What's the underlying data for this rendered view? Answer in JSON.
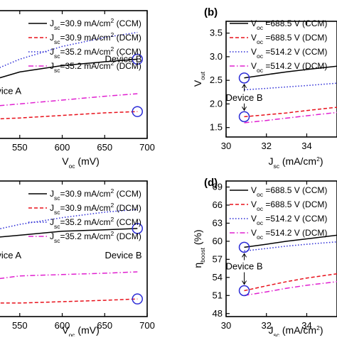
{
  "chart_data": [
    {
      "id": "a",
      "type": "line",
      "panel_label": "",
      "xlabel_main": "V",
      "xlabel_sub": "oc",
      "xlabel_unit": " (mV)",
      "ylabel_main": "",
      "ylabel_sub": "",
      "ylabel_unit": "",
      "xlim": [
        510,
        700
      ],
      "ylim": [
        0,
        1
      ],
      "xticks": [
        550,
        600,
        650,
        700
      ],
      "yticks": [],
      "legend": [
        {
          "main": "J",
          "sub": "sc",
          "text": "=30.9 mA/cm",
          "sup": "2",
          "mode": " (CCM)",
          "color": "#000000",
          "dash": "none"
        },
        {
          "main": "J",
          "sub": "sc",
          "text": "=30.9 mA/cm",
          "sup": "2",
          "mode": " (DCM)",
          "color": "#e8101a",
          "dash": "5,3"
        },
        {
          "main": "J",
          "sub": "sc",
          "text": "=35.2 mA/cm",
          "sup": "2",
          "mode": " (CCM)",
          "color": "#2b2bd6",
          "dash": "1.5,2.5"
        },
        {
          "main": "J",
          "sub": "sc",
          "text": "=35.2 mA/cm",
          "sup": "2",
          "mode": " (DCM)",
          "color": "#e020d0",
          "dash": "7,3,1.5,3"
        }
      ],
      "series": [
        {
          "x": [
            514,
            550,
            600,
            650,
            688.5
          ],
          "y": [
            0.45,
            0.52,
            0.57,
            0.6,
            0.62
          ]
        },
        {
          "x": [
            514,
            550,
            600,
            650,
            688.5
          ],
          "y": [
            0.15,
            0.16,
            0.18,
            0.2,
            0.21
          ]
        },
        {
          "x": [
            514,
            550,
            600,
            650,
            688.5
          ],
          "y": [
            0.52,
            0.62,
            0.72,
            0.79,
            0.83
          ]
        },
        {
          "x": [
            514,
            550,
            600,
            650,
            688.5
          ],
          "y": [
            0.25,
            0.27,
            0.3,
            0.33,
            0.35
          ]
        }
      ],
      "markers": [
        {
          "x": 514,
          "y": 0.52,
          "color": "#e8101a"
        },
        {
          "x": 514,
          "y": 0.21,
          "color": "#e8101a"
        },
        {
          "x": 688.5,
          "y": 0.62,
          "color": "#2b2bd6"
        },
        {
          "x": 688.5,
          "y": 0.21,
          "color": "#2b2bd6"
        }
      ],
      "annotations": [
        {
          "text": "Device A",
          "x": 514,
          "y": 0.37,
          "anchor": "start"
        },
        {
          "text": "Device B",
          "x": 672,
          "y": 0.62,
          "anchor": "middle"
        }
      ]
    },
    {
      "id": "b",
      "type": "line",
      "panel_label": "(b)",
      "xlabel_main": "J",
      "xlabel_sub": "sc",
      "xlabel_unit": " (mA/cm",
      "xlabel_sup": "2",
      "xlabel_close": ")",
      "ylabel_main": "V",
      "ylabel_sub": "out",
      "ylabel_unit": "",
      "xlim": [
        30,
        35.5
      ],
      "ylim": [
        1.3,
        3.75
      ],
      "xticks": [
        30,
        32,
        34
      ],
      "yticks": [
        1.5,
        2.0,
        2.5,
        3.0,
        3.5
      ],
      "ytick_labels": [
        "1.5",
        "2.0",
        "2.5",
        "3.0",
        "3.5"
      ],
      "legend": [
        {
          "main": "V",
          "sub": "oc",
          "text": " =688.5 V (CCM)",
          "sup": "",
          "mode": "",
          "color": "#000000",
          "dash": "none"
        },
        {
          "main": "V",
          "sub": "oc",
          "text": " =688.5 V (DCM)",
          "sup": "",
          "mode": "",
          "color": "#e8101a",
          "dash": "5,3"
        },
        {
          "main": "V",
          "sub": "oc",
          "text": " =514.2 V (CCM)",
          "sup": "",
          "mode": "",
          "color": "#2b2bd6",
          "dash": "1.5,2.5"
        },
        {
          "main": "V",
          "sub": "oc",
          "text": " =514.2 V (DCM)",
          "sup": "",
          "mode": "",
          "color": "#e020d0",
          "dash": "7,3,1.5,3"
        }
      ],
      "series": [
        {
          "x": [
            30.9,
            32,
            33,
            34,
            35.5
          ],
          "y": [
            2.55,
            2.62,
            2.68,
            2.73,
            2.8
          ]
        },
        {
          "x": [
            30.9,
            32,
            33,
            34,
            35.5
          ],
          "y": [
            1.73,
            1.77,
            1.81,
            1.86,
            1.93
          ]
        },
        {
          "x": [
            30.9,
            32,
            33,
            34,
            35.5
          ],
          "y": [
            2.3,
            2.33,
            2.36,
            2.39,
            2.44
          ]
        },
        {
          "x": [
            30.9,
            32,
            33,
            34,
            35.5
          ],
          "y": [
            1.6,
            1.65,
            1.7,
            1.75,
            1.82
          ]
        }
      ],
      "markers": [
        {
          "x": 30.9,
          "y": 2.55,
          "color": "#2b2bd6"
        },
        {
          "x": 30.9,
          "y": 1.73,
          "color": "#2b2bd6"
        }
      ],
      "annotations": [
        {
          "text": "Device B",
          "x": 30.9,
          "y": 2.13,
          "anchor": "middle"
        }
      ]
    },
    {
      "id": "c",
      "type": "line",
      "panel_label": "",
      "xlabel_main": "V",
      "xlabel_sub": "oc",
      "xlabel_unit": " (mV)",
      "ylabel_main": "",
      "ylabel_sub": "",
      "ylabel_unit": "",
      "xlim": [
        510,
        700
      ],
      "ylim": [
        0,
        1
      ],
      "xticks": [
        550,
        600,
        650,
        700
      ],
      "yticks": [],
      "legend": [
        {
          "main": "J",
          "sub": "sc",
          "text": "=30.9 mA/cm",
          "sup": "2",
          "mode": " (CCM)",
          "color": "#000000",
          "dash": "none"
        },
        {
          "main": "J",
          "sub": "sc",
          "text": "=30.9 mA/cm",
          "sup": "2",
          "mode": " (DCM)",
          "color": "#e8101a",
          "dash": "5,3"
        },
        {
          "main": "J",
          "sub": "sc",
          "text": "=35.2 mA/cm",
          "sup": "2",
          "mode": " (CCM)",
          "color": "#2b2bd6",
          "dash": "1.5,2.5"
        },
        {
          "main": "J",
          "sub": "sc",
          "text": "=35.2 mA/cm",
          "sup": "2",
          "mode": " (DCM)",
          "color": "#e020d0",
          "dash": "7,3,1.5,3"
        }
      ],
      "series": [
        {
          "x": [
            514,
            550,
            600,
            650,
            688.5
          ],
          "y": [
            0.58,
            0.6,
            0.63,
            0.64,
            0.65
          ]
        },
        {
          "x": [
            514,
            550,
            600,
            650,
            688.5
          ],
          "y": [
            0.1,
            0.1,
            0.11,
            0.12,
            0.13
          ]
        },
        {
          "x": [
            514,
            550,
            600,
            650,
            688.5
          ],
          "y": [
            0.63,
            0.68,
            0.73,
            0.77,
            0.79
          ]
        },
        {
          "x": [
            514,
            550,
            600,
            650,
            688.5
          ],
          "y": [
            0.27,
            0.3,
            0.31,
            0.32,
            0.33
          ]
        }
      ],
      "markers": [
        {
          "x": 514,
          "y": 0.64,
          "color": "#e8101a"
        },
        {
          "x": 514,
          "y": 0.26,
          "color": "#e8101a"
        },
        {
          "x": 688.5,
          "y": 0.65,
          "color": "#2b2bd6"
        },
        {
          "x": 688.5,
          "y": 0.13,
          "color": "#2b2bd6"
        }
      ],
      "annotations": [
        {
          "text": "Device A",
          "x": 514,
          "y": 0.45,
          "anchor": "start"
        },
        {
          "text": "Device B",
          "x": 672,
          "y": 0.45,
          "anchor": "middle"
        }
      ]
    },
    {
      "id": "d",
      "type": "line",
      "panel_label": "(d)",
      "xlabel_main": "J",
      "xlabel_sub": "sc",
      "xlabel_unit": " (mA/cm",
      "xlabel_sup": "2",
      "xlabel_close": ")",
      "ylabel_main": "η",
      "ylabel_sub": "boost",
      "ylabel_unit": " (%)",
      "xlim": [
        30,
        35.5
      ],
      "ylim": [
        47.5,
        70
      ],
      "xticks": [
        30,
        32,
        34
      ],
      "yticks": [
        48,
        51,
        54,
        57,
        60,
        63,
        66,
        69
      ],
      "ytick_labels": [
        "48",
        "51",
        "54",
        "57",
        "60",
        "63",
        "66",
        "69"
      ],
      "legend": [
        {
          "main": "V",
          "sub": "oc",
          "text": " =688.5 V (CCM)",
          "sup": "",
          "mode": "",
          "color": "#000000",
          "dash": "none"
        },
        {
          "main": "V",
          "sub": "oc",
          "text": " =688.5 V (DCM)",
          "sup": "",
          "mode": "",
          "color": "#e8101a",
          "dash": "5,3"
        },
        {
          "main": "V",
          "sub": "oc",
          "text": " =514.2 V (CCM)",
          "sup": "",
          "mode": "",
          "color": "#2b2bd6",
          "dash": "1.5,2.5"
        },
        {
          "main": "V",
          "sub": "oc",
          "text": " =514.2 V (DCM)",
          "sup": "",
          "mode": "",
          "color": "#e020d0",
          "dash": "7,3,1.5,3"
        }
      ],
      "series": [
        {
          "x": [
            30.9,
            32,
            33,
            34,
            35.5
          ],
          "y": [
            59.0,
            59.5,
            60.0,
            60.4,
            61.0
          ]
        },
        {
          "x": [
            30.9,
            32,
            33,
            34,
            35.5
          ],
          "y": [
            51.8,
            52.6,
            53.3,
            53.9,
            54.6
          ]
        },
        {
          "x": [
            30.9,
            32,
            33,
            34,
            35.5
          ],
          "y": [
            58.4,
            58.8,
            59.2,
            59.5,
            59.9
          ]
        },
        {
          "x": [
            30.9,
            32,
            33,
            34,
            35.5
          ],
          "y": [
            51.0,
            51.6,
            52.2,
            52.7,
            53.3
          ]
        }
      ],
      "markers": [
        {
          "x": 30.9,
          "y": 59.0,
          "color": "#2b2bd6"
        },
        {
          "x": 30.9,
          "y": 51.8,
          "color": "#2b2bd6"
        }
      ],
      "annotations": [
        {
          "text": "Device B",
          "x": 30.9,
          "y": 55.8,
          "anchor": "middle"
        }
      ]
    }
  ]
}
